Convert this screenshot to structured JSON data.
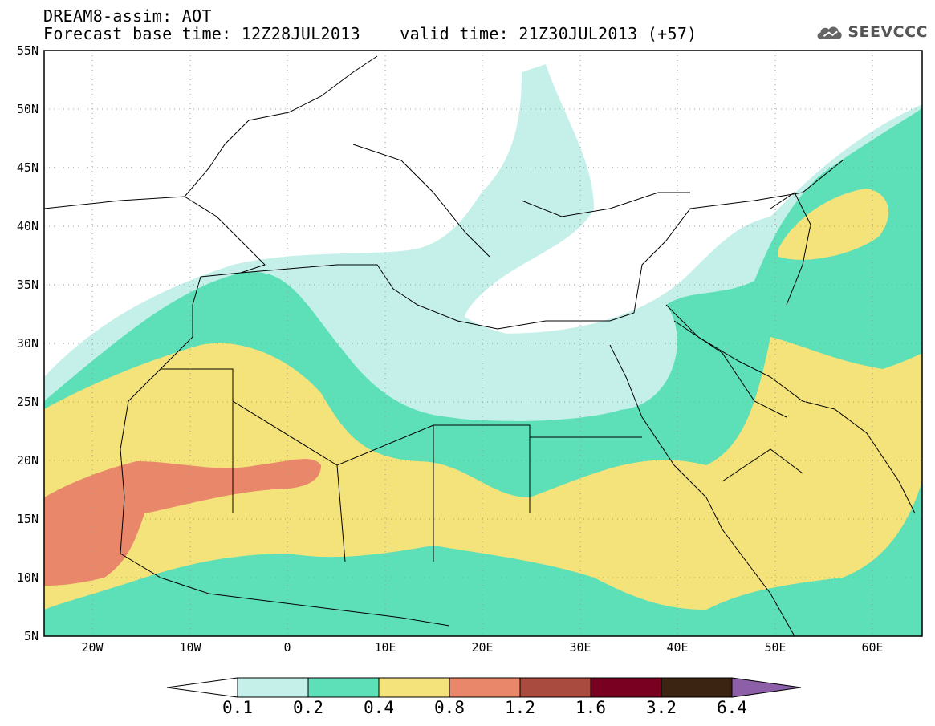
{
  "header": {
    "line1": "DREAM8-assim: AOT",
    "line2": "Forecast base time: 12Z28JUL2013    valid time: 21Z30JUL2013 (+57)"
  },
  "logo": {
    "text": "SEEVCCC",
    "icon": "cloud-icon"
  },
  "axes": {
    "lat_labels": [
      "55N",
      "50N",
      "45N",
      "40N",
      "35N",
      "30N",
      "25N",
      "20N",
      "15N",
      "10N",
      "5N"
    ],
    "lon_labels": [
      "20W",
      "10W",
      "0",
      "10E",
      "20E",
      "30E",
      "40E",
      "50E",
      "60E"
    ],
    "lon_range": [
      -25,
      65
    ],
    "lat_range": [
      5,
      55
    ],
    "grid": "dotted"
  },
  "colorbar": {
    "labels": [
      "0.1",
      "0.2",
      "0.4",
      "0.8",
      "1.2",
      "1.6",
      "3.2",
      "6.4"
    ],
    "colors": [
      "#ffffff",
      "#c5f0ea",
      "#5de0b8",
      "#f4e27a",
      "#e8876a",
      "#a94b3e",
      "#7a0021",
      "#3c2412",
      "#8c5fa8"
    ],
    "extend": "both"
  },
  "colors": {
    "aot_0_1_0_2": "#c5f0ea",
    "aot_0_2_0_4": "#5de0b8",
    "aot_0_4_0_8": "#f4e27a",
    "aot_0_8_1_2": "#e8876a"
  }
}
